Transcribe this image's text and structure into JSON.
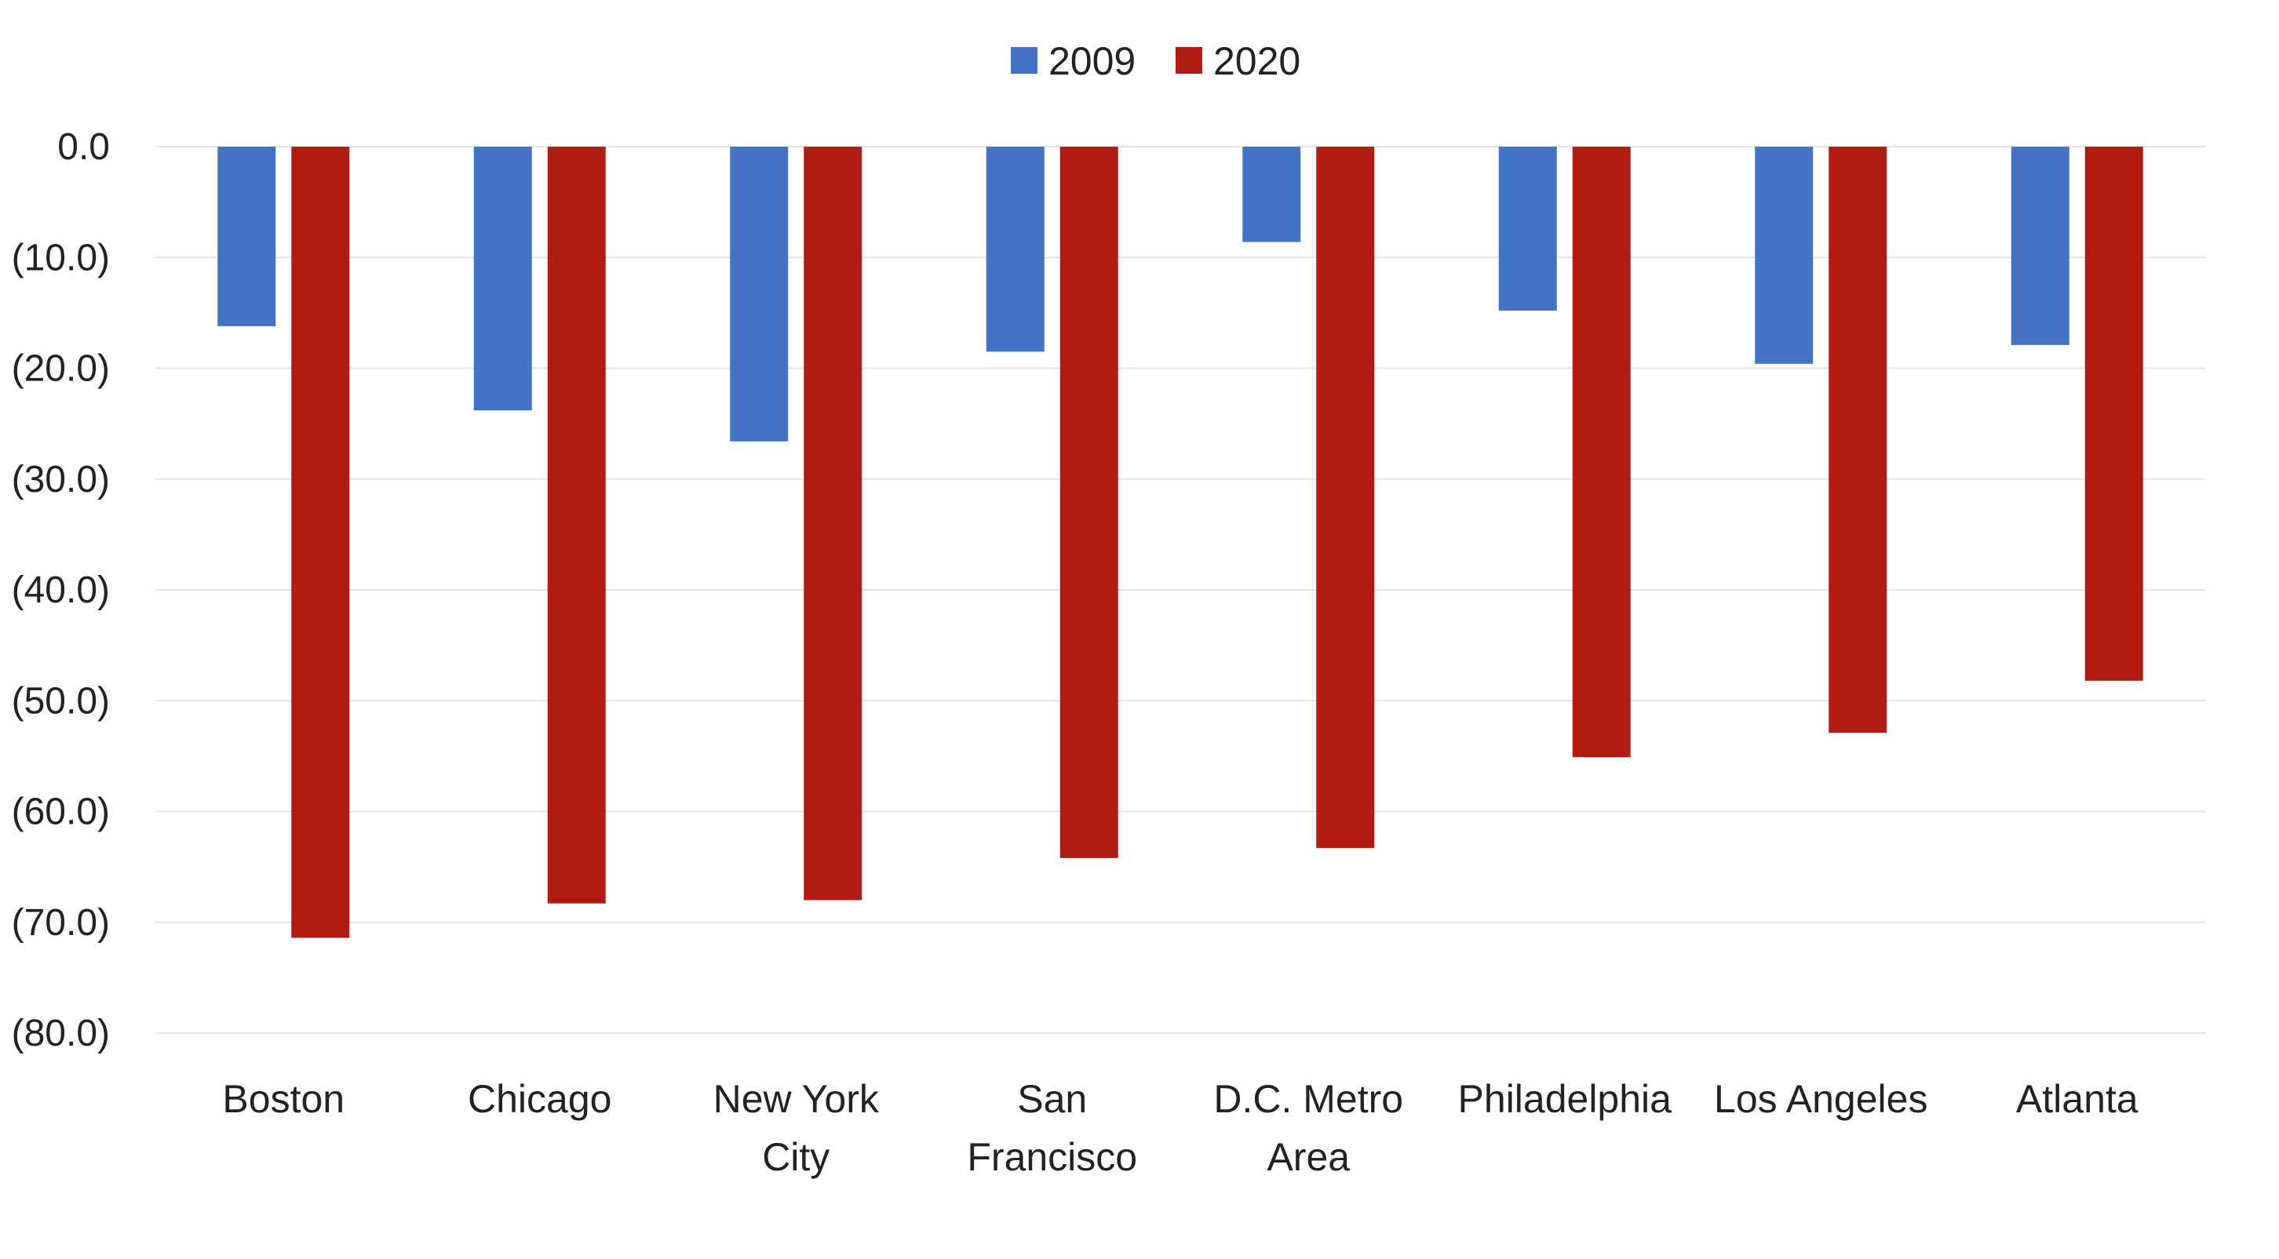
{
  "chart_data": {
    "type": "bar",
    "categories": [
      [
        "Boston"
      ],
      [
        "Chicago"
      ],
      [
        "New York",
        "City"
      ],
      [
        "San",
        "Francisco"
      ],
      [
        "D.C. Metro",
        "Area"
      ],
      [
        "Philadelphia"
      ],
      [
        "Los Angeles"
      ],
      [
        "Atlanta"
      ]
    ],
    "series": [
      {
        "name": "2009",
        "color": "#4472C4",
        "values": [
          -16.2,
          -23.8,
          -26.6,
          -18.5,
          -8.6,
          -14.8,
          -19.6,
          -17.9
        ]
      },
      {
        "name": "2020",
        "color": "#B01C12",
        "values": [
          -71.4,
          -68.3,
          -68.0,
          -64.2,
          -63.3,
          -55.1,
          -52.9,
          -48.2
        ]
      }
    ],
    "ylim": [
      -80,
      0
    ],
    "yticks": [
      0,
      -10,
      -20,
      -30,
      -40,
      -50,
      -60,
      -70,
      -80
    ],
    "ytick_labels": [
      "0.0",
      "(10.0)",
      "(20.0)",
      "(30.0)",
      "(40.0)",
      "(50.0)",
      "(60.0)",
      "(70.0)",
      "(80.0)"
    ],
    "grid": true,
    "legend_position": "top-center",
    "title": "",
    "xlabel": "",
    "ylabel": ""
  }
}
